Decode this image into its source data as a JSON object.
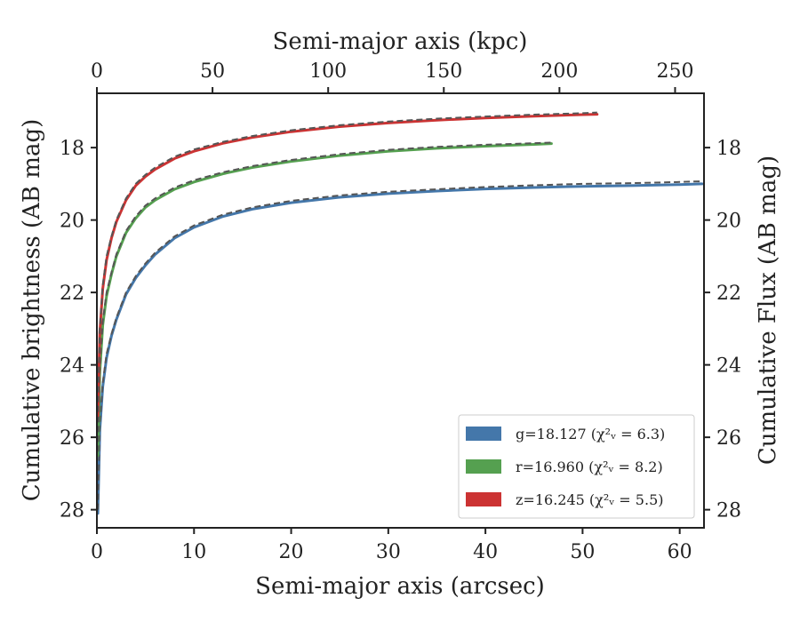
{
  "chart_data": {
    "type": "line",
    "xlabel": "Semi-major axis (arcsec)",
    "xlabel_top": "Semi-major axis (kpc)",
    "ylabel": "Cumulative brightness (AB mag)",
    "ylabel_right": "Cumulative Flux (AB mag)",
    "xlim": [
      0,
      62.5
    ],
    "ylim": [
      28.5,
      16.5
    ],
    "y_inverted": true,
    "xlim_top": [
      0,
      262.5
    ],
    "x_ticks": [
      0,
      10,
      20,
      30,
      40,
      50,
      60
    ],
    "x_ticks_top": [
      0,
      50,
      100,
      150,
      200,
      250
    ],
    "y_ticks": [
      18,
      20,
      22,
      24,
      26,
      28
    ],
    "grid": false,
    "legend_position": "lower-right",
    "fit_line_style": "dashed",
    "fit_line_color": "#555555",
    "series": [
      {
        "name": "g=18.127 (χ²ᵥ = 6.3)",
        "color": "#4477aa",
        "x": [
          0.1,
          0.3,
          0.6,
          1,
          1.5,
          2,
          3,
          4,
          5,
          6,
          8,
          10,
          13,
          16,
          20,
          25,
          30,
          35,
          40,
          45,
          50,
          55,
          60,
          62.3
        ],
        "y": [
          28.1,
          25.8,
          24.6,
          23.8,
          23.2,
          22.75,
          22.05,
          21.6,
          21.25,
          20.95,
          20.5,
          20.2,
          19.9,
          19.7,
          19.52,
          19.37,
          19.27,
          19.2,
          19.14,
          19.1,
          19.07,
          19.05,
          19.02,
          19.0
        ],
        "fit_y": [
          28.0,
          25.7,
          24.5,
          23.7,
          23.15,
          22.7,
          22.0,
          21.55,
          21.2,
          20.9,
          20.45,
          20.15,
          19.85,
          19.65,
          19.47,
          19.32,
          19.22,
          19.15,
          19.09,
          19.04,
          19.0,
          18.98,
          18.95,
          18.93
        ]
      },
      {
        "name": "r=16.960 (χ²ᵥ = 8.2)",
        "color": "#55a050",
        "x": [
          0.1,
          0.3,
          0.6,
          1,
          1.5,
          2,
          3,
          4,
          5,
          6,
          8,
          10,
          13,
          16,
          20,
          25,
          30,
          35,
          40,
          45,
          46.8
        ],
        "y": [
          26.5,
          24.2,
          22.9,
          22.1,
          21.5,
          21.0,
          20.35,
          19.95,
          19.65,
          19.45,
          19.15,
          18.95,
          18.72,
          18.55,
          18.38,
          18.22,
          18.1,
          18.02,
          17.96,
          17.91,
          17.89
        ],
        "fit_y": [
          26.4,
          24.1,
          22.8,
          22.0,
          21.45,
          20.95,
          20.3,
          19.9,
          19.6,
          19.4,
          19.1,
          18.9,
          18.68,
          18.51,
          18.34,
          18.18,
          18.06,
          17.98,
          17.92,
          17.88,
          17.86
        ]
      },
      {
        "name": "z=16.245 (χ²ᵥ = 5.5)",
        "color": "#cc3333",
        "x": [
          0.1,
          0.3,
          0.6,
          1,
          1.5,
          2,
          3,
          4,
          5,
          6,
          8,
          10,
          13,
          16,
          20,
          25,
          30,
          35,
          40,
          45,
          50,
          51.5
        ],
        "y": [
          25.4,
          23.1,
          21.9,
          21.1,
          20.5,
          20.05,
          19.45,
          19.05,
          18.8,
          18.6,
          18.3,
          18.1,
          17.88,
          17.72,
          17.56,
          17.42,
          17.32,
          17.24,
          17.18,
          17.13,
          17.09,
          17.08
        ],
        "fit_y": [
          25.3,
          23.0,
          21.8,
          21.0,
          20.45,
          20.0,
          19.4,
          19.0,
          18.75,
          18.55,
          18.25,
          18.05,
          17.84,
          17.68,
          17.52,
          17.38,
          17.28,
          17.2,
          17.14,
          17.09,
          17.05,
          17.03
        ]
      }
    ]
  }
}
